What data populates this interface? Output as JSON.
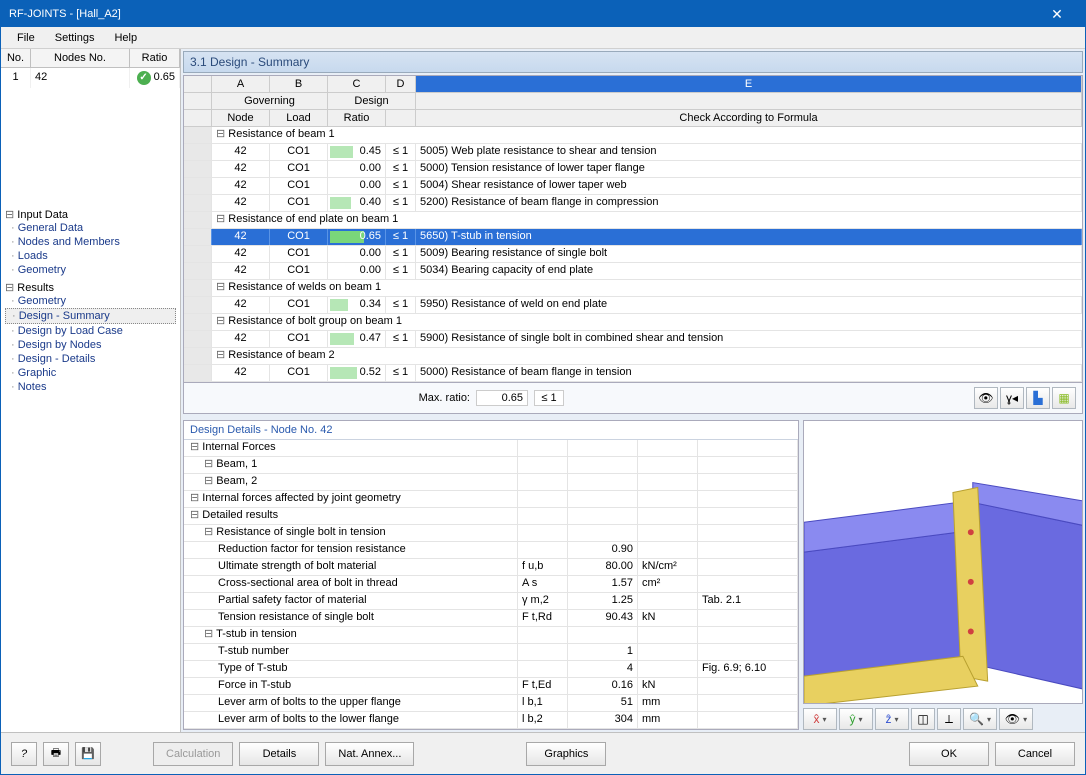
{
  "title": "RF-JOINTS - [Hall_A2]",
  "menu": [
    "File",
    "Settings",
    "Help"
  ],
  "left_grid": {
    "headers": [
      "No.",
      "Nodes No.",
      "Ratio"
    ],
    "row": {
      "no": "1",
      "nodes": "42",
      "ratio": "0.65"
    }
  },
  "tree": {
    "input": {
      "label": "Input Data",
      "items": [
        "General Data",
        "Nodes and Members",
        "Loads",
        "Geometry"
      ]
    },
    "results": {
      "label": "Results",
      "items": [
        "Geometry",
        "Design - Summary",
        "Design by Load Case",
        "Design by Nodes",
        "Design - Details",
        "Graphic",
        "Notes"
      ],
      "selected": 1
    }
  },
  "panel_title": "3.1 Design - Summary",
  "upper": {
    "col_letters": [
      "A",
      "B",
      "C",
      "D",
      "E"
    ],
    "group_headers": [
      "Governing",
      "Design",
      ""
    ],
    "headers": [
      "Node",
      "Load",
      "Ratio",
      "",
      "Check According to Formula"
    ],
    "sections": [
      {
        "title": "Resistance of beam 1",
        "rows": [
          {
            "node": "42",
            "load": "CO1",
            "ratio": "0.45",
            "cmp": "≤ 1",
            "desc": "5005) Web plate resistance to shear and tension"
          },
          {
            "node": "42",
            "load": "CO1",
            "ratio": "0.00",
            "cmp": "≤ 1",
            "desc": "5000) Tension resistance of lower taper flange"
          },
          {
            "node": "42",
            "load": "CO1",
            "ratio": "0.00",
            "cmp": "≤ 1",
            "desc": "5004) Shear resistance of lower taper web"
          },
          {
            "node": "42",
            "load": "CO1",
            "ratio": "0.40",
            "cmp": "≤ 1",
            "desc": "5200) Resistance of beam flange in compression"
          }
        ]
      },
      {
        "title": "Resistance of end plate on beam 1",
        "rows": [
          {
            "node": "42",
            "load": "CO1",
            "ratio": "0.65",
            "cmp": "≤ 1",
            "desc": "5650) T-stub in tension",
            "selected": true
          },
          {
            "node": "42",
            "load": "CO1",
            "ratio": "0.00",
            "cmp": "≤ 1",
            "desc": "5009) Bearing resistance of single bolt"
          },
          {
            "node": "42",
            "load": "CO1",
            "ratio": "0.00",
            "cmp": "≤ 1",
            "desc": "5034) Bearing capacity of end plate"
          }
        ]
      },
      {
        "title": "Resistance of welds on beam 1",
        "rows": [
          {
            "node": "42",
            "load": "CO1",
            "ratio": "0.34",
            "cmp": "≤ 1",
            "desc": "5950) Resistance of weld on end plate"
          }
        ]
      },
      {
        "title": "Resistance of bolt group on beam 1",
        "rows": [
          {
            "node": "42",
            "load": "CO1",
            "ratio": "0.47",
            "cmp": "≤ 1",
            "desc": "5900) Resistance of single bolt in combined shear and tension"
          }
        ]
      },
      {
        "title": "Resistance of beam 2",
        "rows": [
          {
            "node": "42",
            "load": "CO1",
            "ratio": "0.52",
            "cmp": "≤ 1",
            "desc": "5000) Resistance of beam flange in tension"
          }
        ]
      }
    ],
    "max_label": "Max. ratio:",
    "max_ratio": "0.65",
    "max_cmp": "≤ 1"
  },
  "details_title": "Design Details  -  Node No. 42",
  "details": [
    {
      "type": "sect",
      "indent": 0,
      "label": "Internal Forces"
    },
    {
      "type": "sect",
      "indent": 1,
      "label": "Beam, 1"
    },
    {
      "type": "sect",
      "indent": 1,
      "label": "Beam, 2"
    },
    {
      "type": "sect",
      "indent": 0,
      "label": "Internal forces affected by joint geometry"
    },
    {
      "type": "sect",
      "indent": 0,
      "label": "Detailed results"
    },
    {
      "type": "sect",
      "indent": 1,
      "label": "Resistance of single bolt in tension"
    },
    {
      "type": "row",
      "indent": 2,
      "label": "Reduction factor for tension resistance",
      "sym": "",
      "val": "0.90",
      "unit": "",
      "ref": ""
    },
    {
      "type": "row",
      "indent": 2,
      "label": "Ultimate strength of bolt material",
      "sym": "f u,b",
      "val": "80.00",
      "unit": "kN/cm²",
      "ref": ""
    },
    {
      "type": "row",
      "indent": 2,
      "label": "Cross-sectional area of bolt in thread",
      "sym": "A s",
      "val": "1.57",
      "unit": "cm²",
      "ref": ""
    },
    {
      "type": "row",
      "indent": 2,
      "label": "Partial safety factor of material",
      "sym": "γ m,2",
      "val": "1.25",
      "unit": "",
      "ref": "Tab. 2.1"
    },
    {
      "type": "row",
      "indent": 2,
      "label": "Tension resistance of single bolt",
      "sym": "F t,Rd",
      "val": "90.43",
      "unit": "kN",
      "ref": ""
    },
    {
      "type": "sect",
      "indent": 1,
      "label": "T-stub in tension"
    },
    {
      "type": "row",
      "indent": 2,
      "label": "T-stub number",
      "sym": "",
      "val": "1",
      "unit": "",
      "ref": ""
    },
    {
      "type": "row",
      "indent": 2,
      "label": "Type of T-stub",
      "sym": "",
      "val": "4",
      "unit": "",
      "ref": "Fig. 6.9; 6.10"
    },
    {
      "type": "row",
      "indent": 2,
      "label": "Force in T-stub",
      "sym": "F t,Ed",
      "val": "0.16",
      "unit": "kN",
      "ref": ""
    },
    {
      "type": "row",
      "indent": 2,
      "label": "Lever arm of bolts to the upper flange",
      "sym": "l b,1",
      "val": "51",
      "unit": "mm",
      "ref": ""
    },
    {
      "type": "row",
      "indent": 2,
      "label": "Lever arm of bolts to the lower flange",
      "sym": "l b,2",
      "val": "304",
      "unit": "mm",
      "ref": ""
    }
  ],
  "footer": {
    "calc": "Calculation",
    "details": "Details",
    "annex": "Nat. Annex...",
    "graphics": "Graphics",
    "ok": "OK",
    "cancel": "Cancel"
  },
  "toolbar_icons": [
    "eye-icon",
    "filter-icon",
    "chart-icon",
    "export-icon"
  ],
  "viewer_icons": [
    "axis-x-icon",
    "axis-y-icon",
    "axis-z-icon",
    "iso-icon",
    "perspective-icon",
    "zoom-icon",
    "view-icon"
  ],
  "footer_icons": [
    "help-icon",
    "print-icon",
    "save-icon"
  ]
}
